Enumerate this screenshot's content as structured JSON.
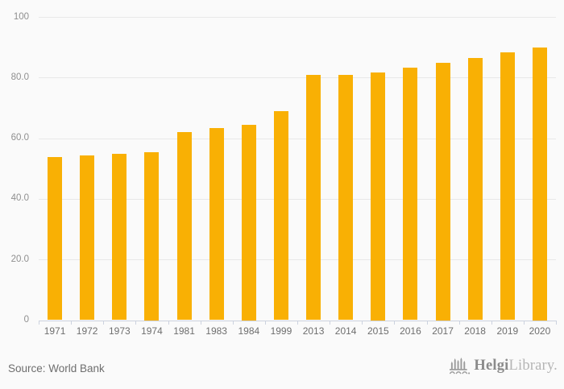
{
  "chart_data": {
    "type": "bar",
    "title": "",
    "xlabel": "",
    "ylabel": "",
    "categories": [
      "1971",
      "1972",
      "1973",
      "1974",
      "1981",
      "1983",
      "1984",
      "1999",
      "2013",
      "2014",
      "2015",
      "2016",
      "2017",
      "2018",
      "2019",
      "2020"
    ],
    "values": [
      53.7,
      54.3,
      54.9,
      55.5,
      62.1,
      63.4,
      64.4,
      69.0,
      80.8,
      80.8,
      81.8,
      83.3,
      85.0,
      86.5,
      88.2,
      89.9
    ],
    "ylim": [
      0,
      100
    ],
    "yticks": [
      0,
      20,
      40,
      60,
      80,
      100
    ],
    "ytick_labels": [
      "0",
      "20.0",
      "40.0",
      "60.0",
      "80.0",
      "100"
    ],
    "grid": true,
    "legend": false,
    "bar_color": "#F9B004"
  },
  "footer": {
    "source_text": "Source: World Bank",
    "brand": {
      "bold": "Helgi",
      "light": "Library.",
      "icon": "bridge-icon"
    }
  },
  "colors": {
    "background": "#FAFAFA",
    "bar": "#F9B004",
    "gridline": "#E8E8E8",
    "axis": "#CCD2DF",
    "y_label": "#8F8F8F",
    "x_label": "#6E6E6E",
    "source_text": "#6E6E6E",
    "brand_bold": "#8B8B8B",
    "brand_light": "#B5B5B5"
  }
}
